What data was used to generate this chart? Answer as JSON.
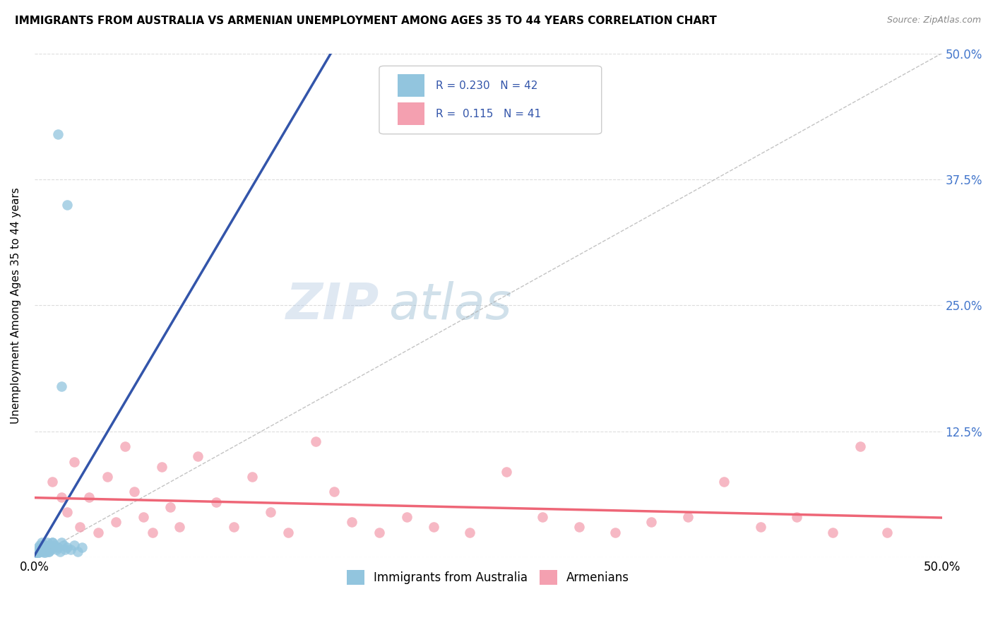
{
  "title": "IMMIGRANTS FROM AUSTRALIA VS ARMENIAN UNEMPLOYMENT AMONG AGES 35 TO 44 YEARS CORRELATION CHART",
  "source": "Source: ZipAtlas.com",
  "ylabel": "Unemployment Among Ages 35 to 44 years",
  "xlim": [
    0.0,
    0.5
  ],
  "ylim": [
    0.0,
    0.5
  ],
  "xticks": [
    0.0,
    0.125,
    0.25,
    0.375,
    0.5
  ],
  "xtick_labels": [
    "0.0%",
    "",
    "",
    "",
    "50.0%"
  ],
  "ytick_labels_right": [
    "",
    "12.5%",
    "25.0%",
    "37.5%",
    "50.0%"
  ],
  "legend_R1": "0.230",
  "legend_N1": "42",
  "legend_R2": "0.115",
  "legend_N2": "41",
  "color_blue": "#92C5DE",
  "color_pink": "#F4A0B0",
  "line_blue": "#3355AA",
  "line_pink": "#EE6677",
  "background_color": "#FFFFFF",
  "grid_color": "#DDDDDD",
  "australia_x": [
    0.001,
    0.002,
    0.002,
    0.003,
    0.003,
    0.004,
    0.004,
    0.005,
    0.005,
    0.006,
    0.006,
    0.007,
    0.007,
    0.008,
    0.008,
    0.009,
    0.01,
    0.01,
    0.011,
    0.012,
    0.013,
    0.014,
    0.015,
    0.016,
    0.017,
    0.018,
    0.02,
    0.022,
    0.024,
    0.026,
    0.001,
    0.002,
    0.003,
    0.004,
    0.005,
    0.006,
    0.007,
    0.008,
    0.01,
    0.015,
    0.013,
    0.018
  ],
  "australia_y": [
    0.005,
    0.008,
    0.01,
    0.012,
    0.006,
    0.015,
    0.008,
    0.01,
    0.005,
    0.012,
    0.008,
    0.015,
    0.01,
    0.012,
    0.006,
    0.008,
    0.015,
    0.01,
    0.012,
    0.008,
    0.01,
    0.006,
    0.015,
    0.012,
    0.008,
    0.01,
    0.008,
    0.012,
    0.006,
    0.01,
    0.003,
    0.005,
    0.008,
    0.006,
    0.01,
    0.005,
    0.008,
    0.006,
    0.015,
    0.17,
    0.42,
    0.35
  ],
  "armenian_x": [
    0.01,
    0.015,
    0.018,
    0.022,
    0.025,
    0.03,
    0.035,
    0.04,
    0.045,
    0.05,
    0.055,
    0.06,
    0.065,
    0.07,
    0.075,
    0.08,
    0.09,
    0.1,
    0.11,
    0.12,
    0.13,
    0.14,
    0.155,
    0.165,
    0.175,
    0.19,
    0.205,
    0.22,
    0.24,
    0.26,
    0.28,
    0.3,
    0.32,
    0.34,
    0.36,
    0.38,
    0.4,
    0.42,
    0.44,
    0.455,
    0.47
  ],
  "armenian_y": [
    0.075,
    0.06,
    0.045,
    0.095,
    0.03,
    0.06,
    0.025,
    0.08,
    0.035,
    0.11,
    0.065,
    0.04,
    0.025,
    0.09,
    0.05,
    0.03,
    0.1,
    0.055,
    0.03,
    0.08,
    0.045,
    0.025,
    0.115,
    0.065,
    0.035,
    0.025,
    0.04,
    0.03,
    0.025,
    0.085,
    0.04,
    0.03,
    0.025,
    0.035,
    0.04,
    0.075,
    0.03,
    0.04,
    0.025,
    0.11,
    0.025
  ]
}
